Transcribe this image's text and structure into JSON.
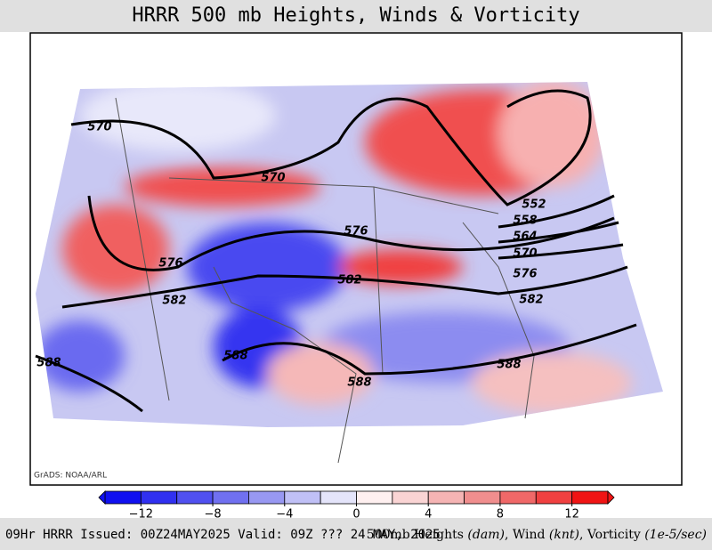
{
  "title": "HRRR 500 mb Heights, Winds & Vorticity",
  "credit": "GrADS: NOAA/ARL",
  "contour_labels": [
    570,
    570,
    576,
    576,
    582,
    582,
    552,
    558,
    564,
    570,
    576,
    582,
    588,
    588,
    588,
    588
  ],
  "colorbar": {
    "lim": [
      -14,
      14
    ],
    "colors": [
      "#1010f0",
      "#3030f0",
      "#5050f0",
      "#7070f0",
      "#9898f2",
      "#c0c0f6",
      "#e4e4fa",
      "#fff0f0",
      "#fad4d4",
      "#f5b4b4",
      "#f08e8e",
      "#f06868",
      "#f04040",
      "#f01414"
    ],
    "ticks": [
      {
        "value": -12,
        "label": "−12"
      },
      {
        "value": -8,
        "label": "−8"
      },
      {
        "value": -4,
        "label": "−4"
      },
      0,
      4,
      8,
      12
    ]
  },
  "footer": {
    "left": "09Hr HRRR Issued: 00Z24MAY2025 Valid: 09Z ??? 24 MAY, 2025",
    "right": [
      "500mb Heights ",
      "(dam)",
      ", Wind ",
      "(knt)",
      ", Vorticity ",
      "(1e-5/sec)"
    ]
  }
}
